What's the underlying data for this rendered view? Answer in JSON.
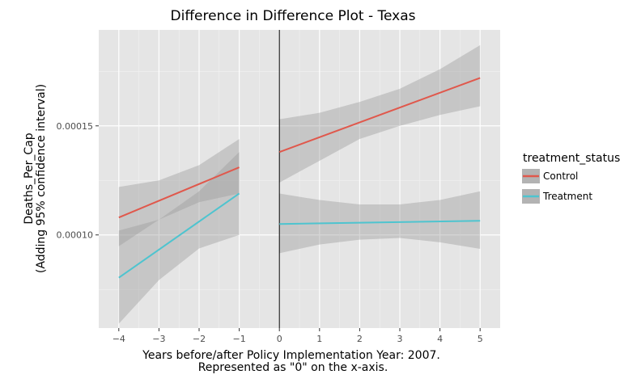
{
  "chart_data": {
    "type": "line",
    "title": "Difference in Difference Plot - Texas",
    "xlabel_lines": [
      "Years before/after Policy Implementation Year: 2007.",
      "Represented as \"0\" on the x-axis."
    ],
    "ylabel_lines": [
      "Deaths_Per_Cap",
      "(Adding 95% confidence interval)"
    ],
    "xlim": [
      -4.5,
      5.5
    ],
    "ylim": [
      5.73e-05,
      0.000194
    ],
    "x_ticks": [
      -4,
      -3,
      -2,
      -1,
      0,
      1,
      2,
      3,
      4,
      5
    ],
    "x_tick_labels": [
      "−4",
      "−3",
      "−2",
      "−1",
      "0",
      "1",
      "2",
      "3",
      "4",
      "5"
    ],
    "y_ticks": [
      0.0001,
      0.00015
    ],
    "y_tick_labels": [
      "0.00010",
      "0.00015"
    ],
    "grid": true,
    "vline_x": 0,
    "legend": {
      "title": "treatment_status",
      "position": "right",
      "entries": [
        "Control",
        "Treatment"
      ]
    },
    "series": [
      {
        "name": "Control",
        "color": "#e0584c",
        "segment": "before",
        "x": [
          -4,
          -1
        ],
        "y": [
          0.000108,
          0.000131
        ],
        "band": {
          "x": [
            -4,
            -3,
            -2,
            -1
          ],
          "lower": [
            9.48e-05,
            0.000107,
            0.000115,
            0.000119
          ],
          "upper": [
            0.000122,
            0.000125,
            0.000132,
            0.000144
          ]
        }
      },
      {
        "name": "Treatment",
        "color": "#4ec4cf",
        "segment": "before",
        "x": [
          -4,
          -1
        ],
        "y": [
          8.04e-05,
          0.000119
        ],
        "band": {
          "x": [
            -4,
            -3,
            -2,
            -1
          ],
          "lower": [
            5.93e-05,
            7.93e-05,
            9.38e-05,
            0.0001
          ],
          "upper": [
            0.000102,
            0.000107,
            0.00012,
            0.000138
          ]
        }
      },
      {
        "name": "Control",
        "color": "#e0584c",
        "segment": "after",
        "x": [
          0,
          5
        ],
        "y": [
          0.000138,
          0.000172
        ],
        "band": {
          "x": [
            0,
            1,
            2,
            3,
            4,
            5
          ],
          "lower": [
            0.000124,
            0.000134,
            0.000144,
            0.00015,
            0.000155,
            0.000159
          ],
          "upper": [
            0.000153,
            0.000156,
            0.000161,
            0.000167,
            0.000176,
            0.000187
          ]
        }
      },
      {
        "name": "Treatment",
        "color": "#4ec4cf",
        "segment": "after",
        "x": [
          0,
          5
        ],
        "y": [
          0.000105,
          0.0001065
        ],
        "band": {
          "x": [
            0,
            1,
            2,
            3,
            4,
            5
          ],
          "lower": [
            9.16e-05,
            9.56e-05,
            9.78e-05,
            9.86e-05,
            9.66e-05,
            9.36e-05
          ],
          "upper": [
            0.000119,
            0.000116,
            0.000114,
            0.000114,
            0.000116,
            0.00012
          ]
        }
      }
    ]
  }
}
